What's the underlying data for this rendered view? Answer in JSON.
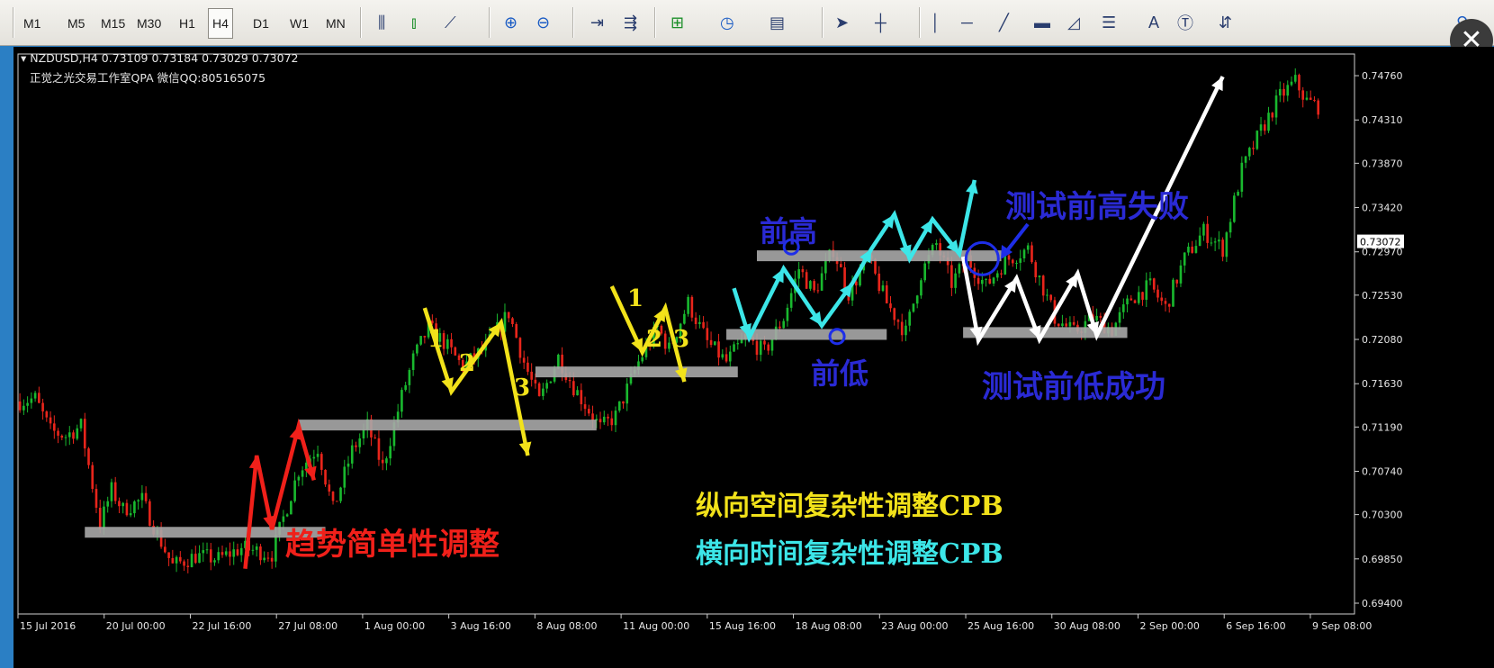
{
  "toolbar": {
    "timeframes": [
      "M1",
      "M5",
      "M15",
      "M30",
      "H1",
      "H4",
      "D1",
      "W1",
      "MN"
    ],
    "active_timeframe": "H4",
    "icons": [
      "bar-chart-icon",
      "candlestick-icon",
      "line-chart-icon",
      "zoom-in-icon",
      "zoom-out-icon",
      "chart-shift-icon",
      "autoscroll-icon",
      "indicators-icon",
      "periods-icon",
      "templates-icon",
      "cursor-icon",
      "crosshair-icon",
      "vertical-line-icon",
      "horizontal-line-icon",
      "trendline-icon",
      "rectangle-icon",
      "fibonacci-icon",
      "channel-icon",
      "text-icon",
      "text-label-icon",
      "arrows-icon",
      "search-icon"
    ],
    "text_tool_label": "A",
    "close_glyph": "✕"
  },
  "chart_info": {
    "symbol_line": "NZDUSD,H4  0.73109 0.73184 0.73029 0.73072",
    "studio_line": "正觉之光交易工作室QPA 微信QQ:805165075"
  },
  "price_axis": {
    "labels": [
      "0.74760",
      "0.74310",
      "0.73870",
      "0.73420",
      "0.72970",
      "0.72530",
      "0.72080",
      "0.71630",
      "0.71190",
      "0.70740",
      "0.70300",
      "0.69850",
      "0.69400"
    ],
    "current_price": "0.73072"
  },
  "time_axis": {
    "labels": [
      "15 Jul 2016",
      "20 Jul 00:00",
      "22 Jul 16:00",
      "27 Jul 08:00",
      "1 Aug 00:00",
      "3 Aug 16:00",
      "8 Aug 08:00",
      "11 Aug 00:00",
      "15 Aug 16:00",
      "18 Aug 08:00",
      "23 Aug 00:00",
      "25 Aug 16:00",
      "30 Aug 08:00",
      "2 Sep 00:00",
      "6 Sep 16:00",
      "9 Sep 08:00"
    ]
  },
  "annotations": {
    "trend_simple": "趋势简单性调整",
    "vertical_cpb": "纵向空间复杂性调整CPB",
    "horizontal_cpb": "横向时间复杂性调整CPB",
    "prev_high": "前高",
    "prev_low": "前低",
    "test_high_fail": "测试前高失败",
    "test_low_success": "测试前低成功",
    "wave_labels": [
      "1",
      "2",
      "3"
    ],
    "wave_labels_b": [
      "1",
      "2",
      "3"
    ]
  },
  "colors": {
    "bull": "#19b82e",
    "bear": "#e8251b",
    "level": "#a8a8a8",
    "yellow": "#f2e21a",
    "cyan": "#3ce6e8",
    "white": "#ffffff",
    "red": "#f0201a",
    "blue_text": "#2a2ad4",
    "blue_circle": "#1e2ee8"
  },
  "chart_data": {
    "type": "candlestick",
    "symbol": "NZDUSD",
    "timeframe": "H4",
    "last_bar": {
      "open": 0.73109,
      "high": 0.73184,
      "low": 0.73029,
      "close": 0.73072
    },
    "ylim": [
      0.694,
      0.7498
    ],
    "close_path": [
      [
        0,
        0.7145
      ],
      [
        4,
        0.7148
      ],
      [
        8,
        0.7115
      ],
      [
        12,
        0.711
      ],
      [
        16,
        0.712
      ],
      [
        21,
        0.702
      ],
      [
        24,
        0.7055
      ],
      [
        27,
        0.7035
      ],
      [
        32,
        0.7045
      ],
      [
        36,
        0.701
      ],
      [
        40,
        0.6978
      ],
      [
        46,
        0.6988
      ],
      [
        52,
        0.6985
      ],
      [
        58,
        0.6996
      ],
      [
        66,
        0.699
      ],
      [
        73,
        0.7075
      ],
      [
        78,
        0.7098
      ],
      [
        82,
        0.7035
      ],
      [
        87,
        0.7095
      ],
      [
        91,
        0.712
      ],
      [
        95,
        0.7078
      ],
      [
        100,
        0.715
      ],
      [
        103,
        0.7188
      ],
      [
        107,
        0.722
      ],
      [
        111,
        0.7205
      ],
      [
        116,
        0.718
      ],
      [
        122,
        0.72
      ],
      [
        128,
        0.7235
      ],
      [
        132,
        0.7185
      ],
      [
        136,
        0.7145
      ],
      [
        141,
        0.719
      ],
      [
        145,
        0.716
      ],
      [
        152,
        0.7118
      ],
      [
        156,
        0.713
      ],
      [
        162,
        0.7185
      ],
      [
        167,
        0.722
      ],
      [
        170,
        0.7198
      ],
      [
        175,
        0.7245
      ],
      [
        180,
        0.7205
      ],
      [
        185,
        0.7185
      ],
      [
        190,
        0.721
      ],
      [
        195,
        0.7195
      ],
      [
        200,
        0.723
      ],
      [
        204,
        0.728
      ],
      [
        208,
        0.7255
      ],
      [
        213,
        0.73
      ],
      [
        217,
        0.7255
      ],
      [
        222,
        0.729
      ],
      [
        227,
        0.7245
      ],
      [
        232,
        0.7215
      ],
      [
        236,
        0.7275
      ],
      [
        240,
        0.7305
      ],
      [
        244,
        0.7265
      ],
      [
        248,
        0.729
      ],
      [
        253,
        0.7262
      ],
      [
        258,
        0.7288
      ],
      [
        264,
        0.73
      ],
      [
        267,
        0.727
      ],
      [
        271,
        0.723
      ],
      [
        276,
        0.7215
      ],
      [
        281,
        0.723
      ],
      [
        286,
        0.7218
      ],
      [
        291,
        0.725
      ],
      [
        296,
        0.7262
      ],
      [
        300,
        0.724
      ],
      [
        305,
        0.729
      ],
      [
        310,
        0.7318
      ],
      [
        315,
        0.73
      ],
      [
        320,
        0.738
      ],
      [
        325,
        0.742
      ],
      [
        330,
        0.7455
      ],
      [
        334,
        0.747
      ],
      [
        337,
        0.745
      ],
      [
        340,
        0.7445
      ]
    ],
    "support_resistance_levels": [
      {
        "price": 0.7012,
        "from_bar": 17,
        "to_bar": 80
      },
      {
        "price": 0.7121,
        "from_bar": 73,
        "to_bar": 151
      },
      {
        "price": 0.7175,
        "from_bar": 135,
        "to_bar": 188
      },
      {
        "price": 0.7213,
        "from_bar": 185,
        "to_bar": 227
      },
      {
        "price": 0.7293,
        "from_bar": 193,
        "to_bar": 257
      },
      {
        "price": 0.7215,
        "from_bar": 247,
        "to_bar": 290
      }
    ],
    "wave_arrows": [
      {
        "color": "red",
        "points": [
          [
            59,
            0.6975
          ],
          [
            62,
            0.709
          ],
          [
            66,
            0.7015
          ],
          [
            73,
            0.712
          ],
          [
            77,
            0.7065
          ]
        ]
      },
      {
        "color": "yellow",
        "points": [
          [
            106,
            0.724
          ],
          [
            113,
            0.7155
          ],
          [
            126,
            0.7225
          ],
          [
            133,
            0.709
          ]
        ]
      },
      {
        "color": "yellow",
        "points": [
          [
            155,
            0.7262
          ],
          [
            163,
            0.7195
          ],
          [
            169,
            0.724
          ],
          [
            174,
            0.7165
          ]
        ]
      },
      {
        "color": "cyan",
        "points": [
          [
            187,
            0.726
          ],
          [
            191,
            0.721
          ],
          [
            200,
            0.728
          ],
          [
            210,
            0.7222
          ],
          [
            218,
            0.7265
          ],
          [
            223,
            0.73
          ],
          [
            229,
            0.7335
          ],
          [
            233,
            0.729
          ],
          [
            239,
            0.733
          ],
          [
            246,
            0.7295
          ],
          [
            250,
            0.737
          ]
        ]
      },
      {
        "color": "white",
        "points": [
          [
            247,
            0.7292
          ],
          [
            251,
            0.7207
          ],
          [
            261,
            0.727
          ],
          [
            267,
            0.7208
          ],
          [
            277,
            0.7275
          ],
          [
            282,
            0.7212
          ],
          [
            315,
            0.7475
          ]
        ]
      }
    ],
    "markers": [
      {
        "type": "circle",
        "bar": 202,
        "price": 0.7302,
        "label": "前高"
      },
      {
        "type": "circle",
        "bar": 214,
        "price": 0.7211,
        "label": "前低"
      },
      {
        "type": "circle",
        "bar": 252,
        "price": 0.729,
        "label": "测试前高失败"
      }
    ]
  }
}
